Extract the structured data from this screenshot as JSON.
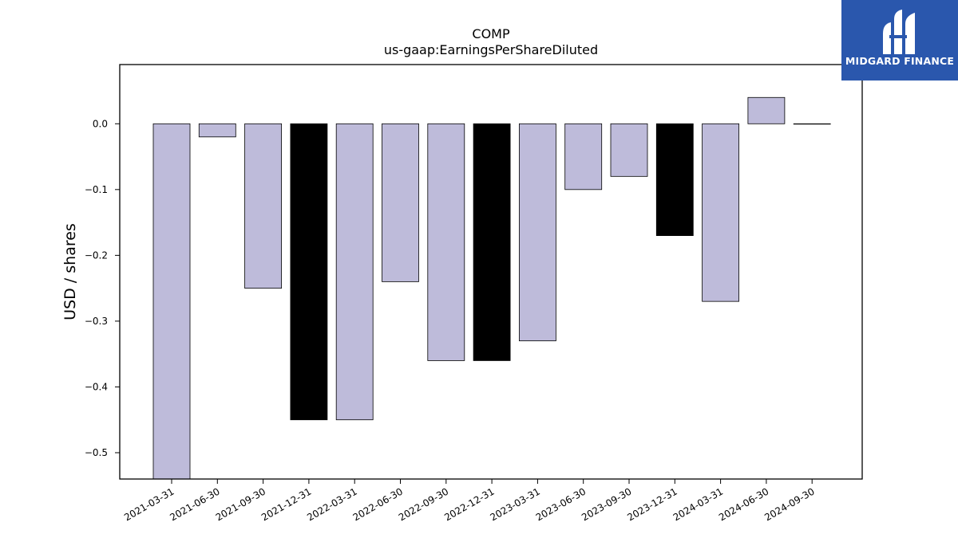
{
  "brand": {
    "name": "MIDGARD FINANCE",
    "logo_icon": "midgard-logo-icon",
    "background": "#2a57ad"
  },
  "chart_data": {
    "type": "bar",
    "title": "COMP",
    "subtitle": "us-gaap:EarningsPerShareDiluted",
    "xlabel": "",
    "ylabel": "USD / shares",
    "categories": [
      "2021-03-31",
      "2021-06-30",
      "2021-09-30",
      "2021-12-31",
      "2022-03-31",
      "2022-06-30",
      "2022-09-30",
      "2022-12-31",
      "2023-03-31",
      "2023-06-30",
      "2023-09-30",
      "2023-12-31",
      "2024-03-31",
      "2024-06-30",
      "2024-09-30"
    ],
    "values": [
      -0.54,
      -0.02,
      -0.25,
      -0.45,
      -0.45,
      -0.24,
      -0.36,
      -0.36,
      -0.33,
      -0.1,
      -0.08,
      -0.17,
      -0.27,
      0.04,
      0.0
    ],
    "bar_colors": [
      "#bebbda",
      "#bebbda",
      "#bebbda",
      "#000000",
      "#bebbda",
      "#bebbda",
      "#bebbda",
      "#000000",
      "#bebbda",
      "#bebbda",
      "#bebbda",
      "#000000",
      "#bebbda",
      "#bebbda",
      "#bebbda"
    ],
    "ylim": [
      -0.54,
      0.09
    ],
    "yticks": [
      0.0,
      -0.1,
      -0.2,
      -0.3,
      -0.4,
      -0.5
    ],
    "ytick_labels": [
      "0.0",
      "−0.1",
      "−0.2",
      "−0.3",
      "−0.4",
      "−0.5"
    ],
    "grid": false,
    "legend": "none"
  }
}
